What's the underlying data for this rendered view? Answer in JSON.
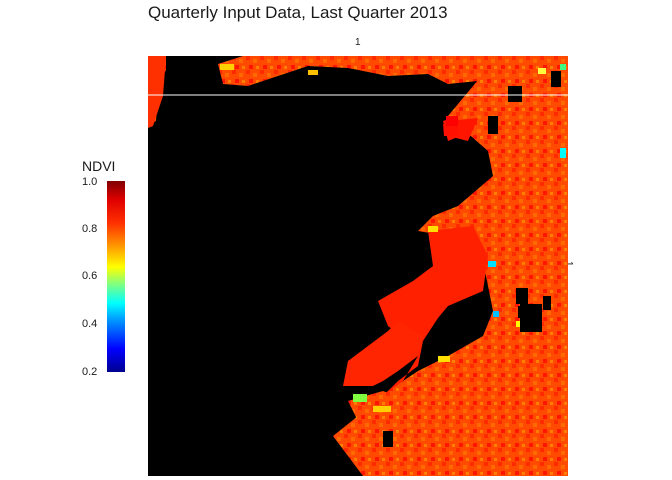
{
  "title": "Quarterly Input Data, Last Quarter 2013",
  "strip_top_label": "1",
  "strip_right_label": "1",
  "legend": {
    "title": "NDVI",
    "ticks": [
      "1.0",
      "0.8",
      "0.6",
      "0.4",
      "0.2"
    ],
    "range": [
      0.2,
      1.0
    ],
    "palette": [
      "#00008F",
      "#0000FF",
      "#00FFFF",
      "#FFFF00",
      "#FF3000",
      "#800000"
    ]
  },
  "map": {
    "masked_color": "#000000",
    "land_color": "#FF3A00"
  }
}
